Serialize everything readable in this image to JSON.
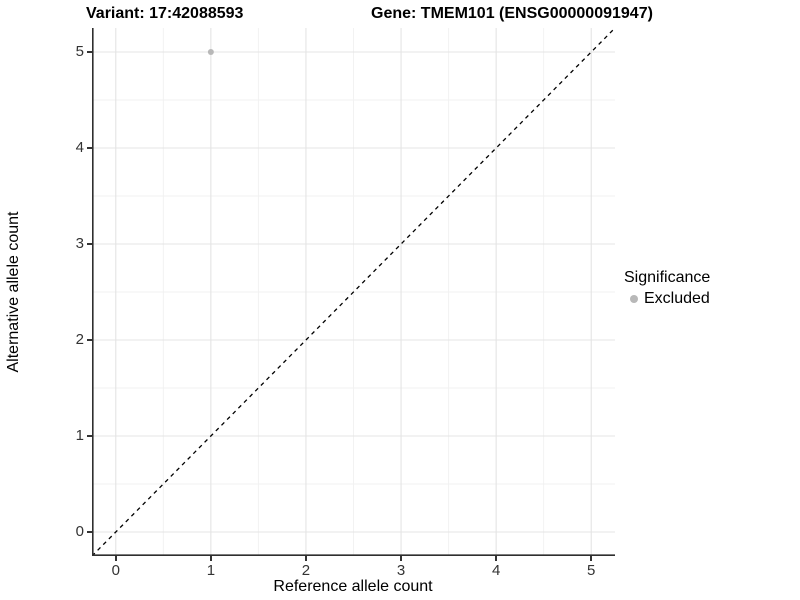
{
  "header": {
    "variant_title": "Variant: 17:42088593",
    "gene_title": "Gene: TMEM101 (ENSG00000091947)"
  },
  "chart_data": {
    "type": "scatter",
    "title": "Variant: 17:42088593   Gene: TMEM101 (ENSG00000091947)",
    "xlabel": "Reference allele count",
    "ylabel": "Alternative allele count",
    "xlim": [
      -0.25,
      5.25
    ],
    "ylim": [
      -0.25,
      5.25
    ],
    "xticks": [
      0,
      1,
      2,
      3,
      4,
      5
    ],
    "yticks": [
      0,
      1,
      2,
      3,
      4,
      5
    ],
    "minor_xticks": [
      0.5,
      1.5,
      2.5,
      3.5,
      4.5
    ],
    "minor_yticks": [
      0.5,
      1.5,
      2.5,
      3.5,
      4.5
    ],
    "grid": "major+minor",
    "series": [
      {
        "name": "Excluded",
        "color": "#b8b8b8",
        "points": [
          {
            "x": 1,
            "y": 5
          }
        ]
      }
    ],
    "reference_line": {
      "type": "identity",
      "style": "dashed",
      "from": [
        -0.25,
        -0.25
      ],
      "to": [
        5.25,
        5.25
      ],
      "color": "#000000"
    },
    "legend": {
      "title": "Significance",
      "position": "right",
      "items": [
        {
          "label": "Excluded",
          "color": "#b8b8b8"
        }
      ]
    }
  },
  "colors": {
    "background": "#ffffff",
    "grid_major": "#e4e4e4",
    "grid_minor": "#f1f1f1",
    "axis_line": "#2f2f2f",
    "tick_mark": "#333333",
    "point": "#b8b8b8",
    "dashed_line": "#000000"
  }
}
